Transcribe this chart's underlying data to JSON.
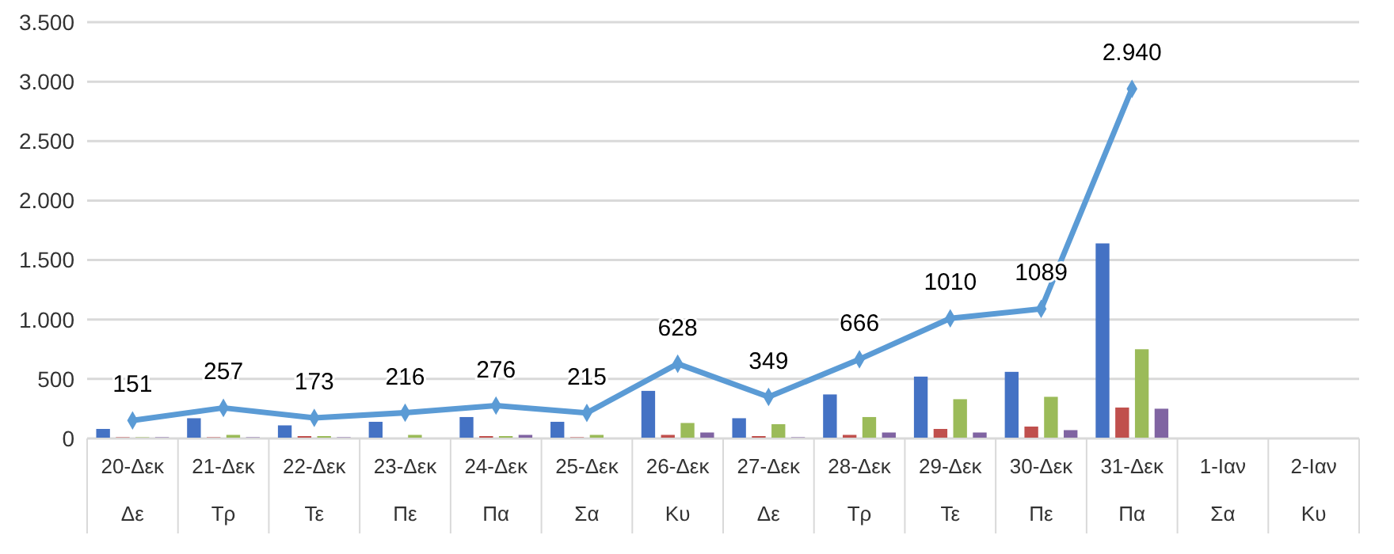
{
  "chart_data": {
    "type": "bar",
    "categories": [
      "20-Δεκ\nΔε",
      "21-Δεκ\nΤρ",
      "22-Δεκ\nΤε",
      "23-Δεκ\nΠε",
      "24-Δεκ\nΠα",
      "25-Δεκ\nΣα",
      "26-Δεκ\nΚυ",
      "27-Δεκ\nΔε",
      "28-Δεκ\nΤρ",
      "29-Δεκ\nΤε",
      "30-Δεκ\nΠε",
      "31-Δεκ\nΠα",
      "1-Ιαν\nΣα",
      "2-Ιαν\nΚυ"
    ],
    "series": [
      {
        "color": "#4472c4",
        "values": [
          80,
          170,
          110,
          140,
          180,
          140,
          400,
          170,
          370,
          520,
          560,
          1640,
          null,
          null
        ]
      },
      {
        "color": "#c0504d",
        "values": [
          10,
          10,
          20,
          0,
          20,
          10,
          30,
          20,
          30,
          80,
          100,
          260,
          null,
          null
        ]
      },
      {
        "color": "#9bbb59",
        "values": [
          10,
          30,
          20,
          30,
          20,
          30,
          130,
          120,
          180,
          330,
          350,
          750,
          null,
          null
        ]
      },
      {
        "color": "#8064a2",
        "values": [
          10,
          10,
          10,
          0,
          30,
          0,
          50,
          10,
          50,
          50,
          70,
          250,
          null,
          null
        ]
      },
      {
        "type": "line",
        "color": "#5b9bd5",
        "marker": "diamond",
        "values": [
          151,
          257,
          173,
          216,
          276,
          215,
          628,
          349,
          666,
          1010,
          1089,
          2940,
          null,
          null
        ],
        "value_labels": [
          "151",
          "257",
          "173",
          "216",
          "276",
          "215",
          "628",
          "349",
          "666",
          "1010",
          "1089",
          "2.940",
          null,
          null
        ]
      }
    ],
    "ylim": [
      0,
      3500
    ],
    "yticks": [
      0,
      500,
      {
        "value": 1000,
        "label": "1.000"
      },
      {
        "value": 1500,
        "label": "1.500"
      },
      {
        "value": 2000,
        "label": "2.000"
      },
      {
        "value": 2500,
        "label": "2.500"
      },
      {
        "value": 3000,
        "label": "3.000"
      },
      {
        "value": 3500,
        "label": "3.500"
      }
    ],
    "grid": "y"
  }
}
